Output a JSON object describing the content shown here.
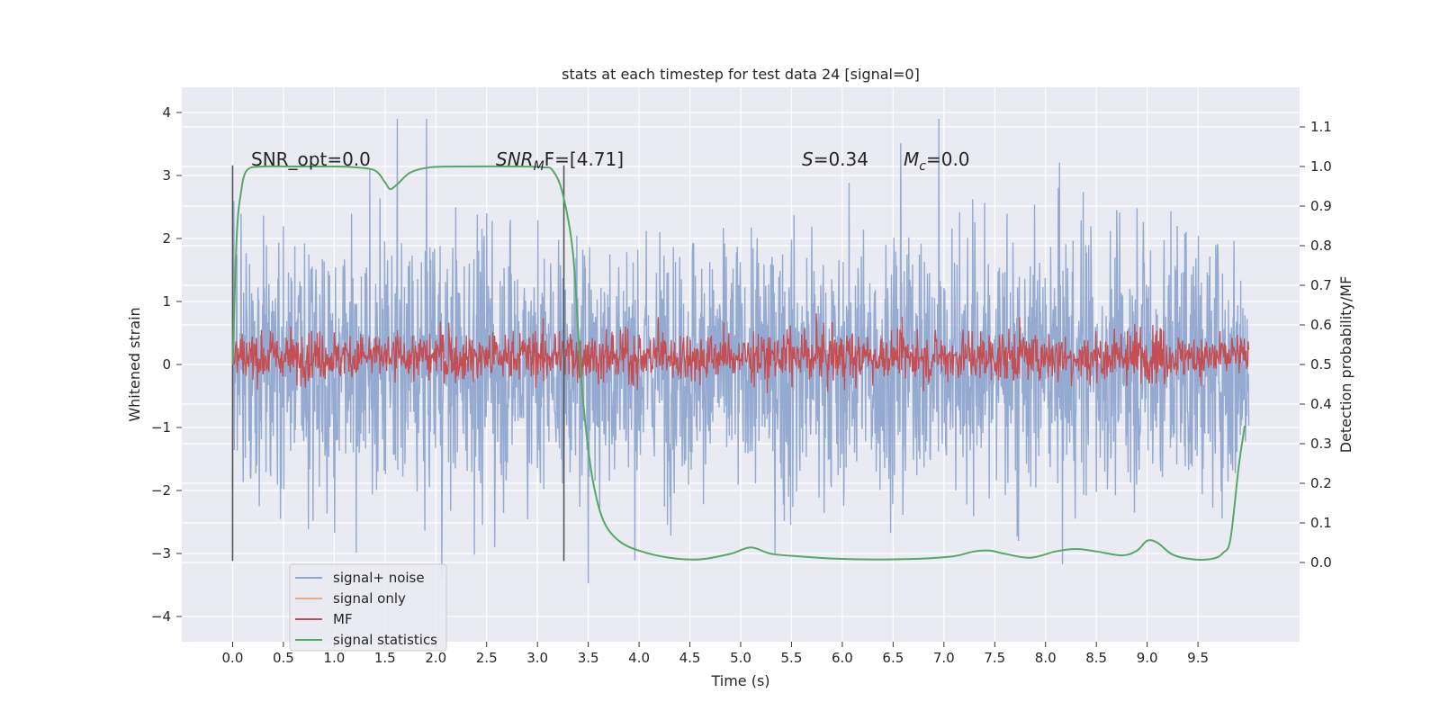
{
  "chart_data": {
    "type": "line",
    "title": "stats at each timestep for test data 24 [signal=0]",
    "xlabel": "Time (s)",
    "ylabel_left": "Whitened strain",
    "ylabel_right": "Detection probability/MF",
    "xlim": [
      -0.5,
      10.5
    ],
    "ylim_left": [
      -4.4,
      4.4
    ],
    "ylim_right": [
      -0.2,
      1.2
    ],
    "grid": true,
    "x_ticks": [
      "0.0",
      "0.5",
      "1.0",
      "1.5",
      "2.0",
      "2.5",
      "3.0",
      "3.5",
      "4.0",
      "4.5",
      "5.0",
      "5.5",
      "6.0",
      "6.5",
      "7.0",
      "7.5",
      "8.0",
      "8.5",
      "9.0",
      "9.5"
    ],
    "y_ticks_left": [
      "4",
      "3",
      "2",
      "1",
      "0",
      "−1",
      "−2",
      "−3",
      "−4"
    ],
    "y_ticks_right": [
      "1.1",
      "1.0",
      "0.9",
      "0.8",
      "0.7",
      "0.6",
      "0.5",
      "0.4",
      "0.3",
      "0.2",
      "0.1",
      "0.0"
    ],
    "annotations": {
      "snr_opt": "SNR_opt=0.0",
      "snr_mf_main": "SNR",
      "snr_mf_sub": "M",
      "snr_mf_rest": "F=[4.71]",
      "s_var": "S",
      "s_rest": "=0.34",
      "mc_var": "M",
      "mc_sub": "c",
      "mc_rest": "=0.0"
    },
    "vertical_lines_x": [
      0.0,
      3.26
    ],
    "legend": {
      "placement": "lower-left",
      "entries": [
        {
          "label": "signal+ noise",
          "color": "#8fa6cf"
        },
        {
          "label": "signal only",
          "color": "#e9a88a"
        },
        {
          "label": "MF",
          "color": "#c44e52"
        },
        {
          "label": "signal statistics",
          "color": "#55a868"
        }
      ]
    },
    "series": [
      {
        "name": "signal+ noise",
        "axis": "left",
        "color": "#8fa6cf",
        "style": "dense noise, amplitude about ±2",
        "x_range": [
          0.0,
          10.0
        ]
      },
      {
        "name": "MF",
        "axis": "right",
        "color": "#c44e52",
        "style": "noisy band around 0.52",
        "x_range": [
          0.0,
          10.0
        ]
      },
      {
        "name": "signal statistics",
        "axis": "right",
        "color": "#55a868",
        "x": [
          0.0,
          0.04,
          0.08,
          0.14,
          0.3,
          0.6,
          1.0,
          1.2,
          1.4,
          1.5,
          1.55,
          1.62,
          1.75,
          1.95,
          2.3,
          2.8,
          3.05,
          3.15,
          3.25,
          3.35,
          3.42,
          3.48,
          3.55,
          3.65,
          3.8,
          4.0,
          4.3,
          4.6,
          4.9,
          5.1,
          5.3,
          5.6,
          5.9,
          6.2,
          6.5,
          6.8,
          7.1,
          7.3,
          7.45,
          7.6,
          7.85,
          8.1,
          8.3,
          8.5,
          8.75,
          8.9,
          9.0,
          9.1,
          9.25,
          9.45,
          9.65,
          9.75,
          9.82,
          9.9,
          9.96
        ],
        "values": [
          0.5,
          0.82,
          0.93,
          0.99,
          1.0,
          1.0,
          1.0,
          0.998,
          0.99,
          0.96,
          0.943,
          0.955,
          0.985,
          0.998,
          1.0,
          1.0,
          0.998,
          0.99,
          0.93,
          0.78,
          0.5,
          0.33,
          0.2,
          0.105,
          0.055,
          0.03,
          0.012,
          0.008,
          0.022,
          0.038,
          0.022,
          0.015,
          0.01,
          0.008,
          0.008,
          0.01,
          0.016,
          0.028,
          0.03,
          0.022,
          0.012,
          0.028,
          0.034,
          0.028,
          0.018,
          0.03,
          0.055,
          0.05,
          0.02,
          0.008,
          0.01,
          0.025,
          0.06,
          0.24,
          0.345
        ]
      }
    ]
  }
}
